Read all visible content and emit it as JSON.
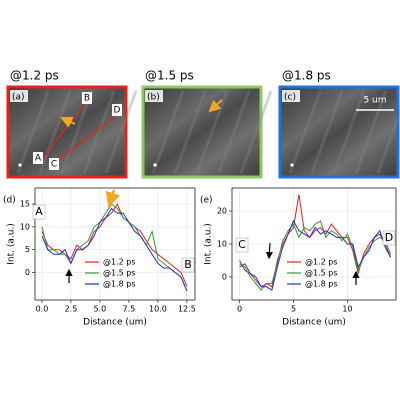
{
  "panels": [
    {
      "title": "@1.2 ps",
      "label": "(a)",
      "color": "#e8201a"
    },
    {
      "title": "@1.5 ps",
      "label": "(b)",
      "color": "#8cc860"
    },
    {
      "title": "@1.8 ps",
      "label": "(c)",
      "color": "#1f6fe0"
    }
  ],
  "image_annotations": {
    "a": [
      "A",
      "B",
      "C",
      "D"
    ],
    "scale_bar": "5 um"
  },
  "chart_data": [
    {
      "type": "line",
      "label": "(d)",
      "x_label": "Distance (um)",
      "y_label": "Int. (a.u.)",
      "annotations": [
        "A",
        "B"
      ],
      "x": [
        0,
        0.5,
        1,
        1.5,
        2,
        2.5,
        3,
        3.5,
        4,
        4.5,
        5,
        5.5,
        6,
        6.5,
        7,
        7.5,
        8,
        8.5,
        9,
        9.5,
        10,
        10.5,
        11,
        11.5,
        12,
        12.5
      ],
      "series": [
        {
          "name": "@1.2 ps",
          "color": "#e8201a",
          "values": [
            9,
            6,
            5,
            5,
            4,
            3,
            6,
            5,
            6,
            9,
            10,
            12,
            13,
            15,
            12,
            11,
            10,
            9,
            7,
            5,
            4,
            3,
            2,
            1,
            0,
            -3
          ]
        },
        {
          "name": "@1.5 ps",
          "color": "#2e9e2e",
          "values": [
            10,
            5,
            5,
            4,
            4,
            2,
            5,
            6,
            7,
            10,
            11,
            13,
            15,
            14,
            12,
            11,
            10,
            8,
            6,
            9,
            3,
            2,
            1,
            0,
            -1,
            -4
          ]
        },
        {
          "name": "@1.8 ps",
          "color": "#1f2fd0",
          "values": [
            8,
            5,
            4,
            4,
            5,
            2,
            5,
            5,
            6,
            8,
            11,
            12,
            14,
            13,
            13,
            11,
            9,
            8,
            6,
            4,
            2,
            1,
            1,
            0,
            -1,
            -4
          ]
        }
      ],
      "xlim": [
        -0.6,
        13.2
      ],
      "ylim": [
        -6,
        18.5
      ],
      "xticks": [
        {
          "value": 0,
          "label": "0.0"
        },
        {
          "value": 2.5,
          "label": "2.5"
        },
        {
          "value": 5,
          "label": "5.0"
        },
        {
          "value": 7.5,
          "label": "7.5"
        },
        {
          "value": 10,
          "label": "10.0"
        },
        {
          "value": 12.5,
          "label": "12.5"
        }
      ],
      "yticks": [
        0,
        5,
        10,
        15
      ],
      "grid": true
    },
    {
      "type": "line",
      "label": "(e)",
      "x_label": "Distance (um)",
      "y_label": "Int. (a.u.)",
      "annotations": [
        "C",
        "D"
      ],
      "x": [
        0,
        0.5,
        1,
        1.5,
        2,
        2.5,
        3,
        3.5,
        4,
        4.5,
        5,
        5.5,
        6,
        6.5,
        7,
        7.5,
        8,
        8.5,
        9,
        9.5,
        10,
        10.5,
        11,
        11.5,
        12,
        12.5,
        13,
        13.5,
        14
      ],
      "series": [
        {
          "name": "@1.2 ps",
          "color": "#e8201a",
          "values": [
            5,
            2,
            1,
            -1,
            -3,
            -2,
            -3,
            5,
            10,
            13,
            15,
            25,
            14,
            12,
            14,
            15,
            13,
            16,
            14,
            12,
            12,
            8,
            1,
            7,
            10,
            12,
            13,
            10,
            6
          ]
        },
        {
          "name": "@1.5 ps",
          "color": "#2e9e2e",
          "values": [
            4,
            3,
            0,
            -2,
            -4,
            -2,
            -2,
            4,
            11,
            14,
            16,
            12,
            15,
            14,
            16,
            17,
            12,
            14,
            13,
            11,
            13,
            9,
            2,
            6,
            9,
            11,
            12,
            11,
            7
          ]
        },
        {
          "name": "@1.8 ps",
          "color": "#1f2fd0",
          "values": [
            3,
            4,
            1,
            0,
            -3,
            -3,
            -4,
            3,
            9,
            13,
            17,
            14,
            13,
            12,
            15,
            13,
            14,
            13,
            12,
            12,
            10,
            10,
            3,
            6,
            8,
            12,
            14,
            9,
            6
          ]
        }
      ],
      "xlim": [
        -0.7,
        14.5
      ],
      "ylim": [
        -7,
        27
      ],
      "xticks": [
        0,
        5,
        10
      ],
      "yticks": [
        0,
        10,
        20
      ],
      "grid": true
    }
  ]
}
